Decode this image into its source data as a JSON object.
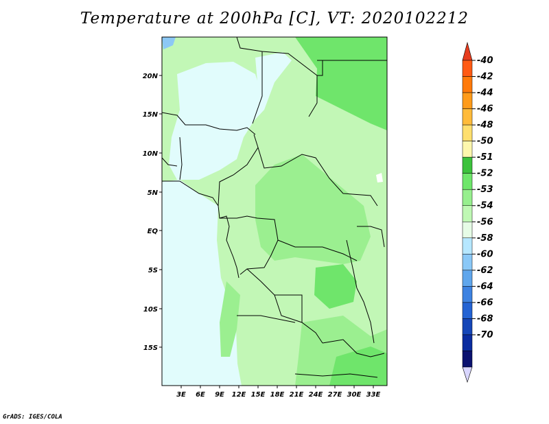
{
  "title": "Temperature at 200hPa [C], VT: 2020102212",
  "credit": "GrADS: IGES/COLA",
  "map": {
    "lat_ticks": [
      "20N",
      "15N",
      "10N",
      "5N",
      "EQ",
      "5S",
      "10S",
      "15S"
    ],
    "lon_ticks": [
      "3E",
      "6E",
      "9E",
      "12E",
      "15E",
      "18E",
      "21E",
      "24E",
      "27E",
      "30E",
      "33E"
    ]
  },
  "colorbar": {
    "levels": [
      "-40",
      "-42",
      "-44",
      "-46",
      "-48",
      "-50",
      "-51",
      "-52",
      "-53",
      "-54",
      "-56",
      "-58",
      "-60",
      "-62",
      "-64",
      "-66",
      "-68",
      "-70"
    ],
    "colors": {
      "top": "#e63c1e",
      "boxes": [
        "#ff5a14",
        "#ff7a0a",
        "#ff9b1a",
        "#ffbb3a",
        "#ffdf6e",
        "#fdf7ad",
        "#3cc23c",
        "#6ee66a",
        "#97ef8e",
        "#bff8b4",
        "#e6fce6",
        "#b6e7ff",
        "#8ac8f7",
        "#5fa6ec",
        "#3d82e1",
        "#2463d3",
        "#1546b8",
        "#0a2ca0",
        "#0b1270"
      ],
      "bottom": "#d9d6ff"
    }
  },
  "field_colors": {
    "ocean_light": "#e1fcfc",
    "pale_green": "#c2f7b6",
    "mid_green": "#9bef90",
    "green": "#6fe56b",
    "blue": "#8cc8f5"
  }
}
